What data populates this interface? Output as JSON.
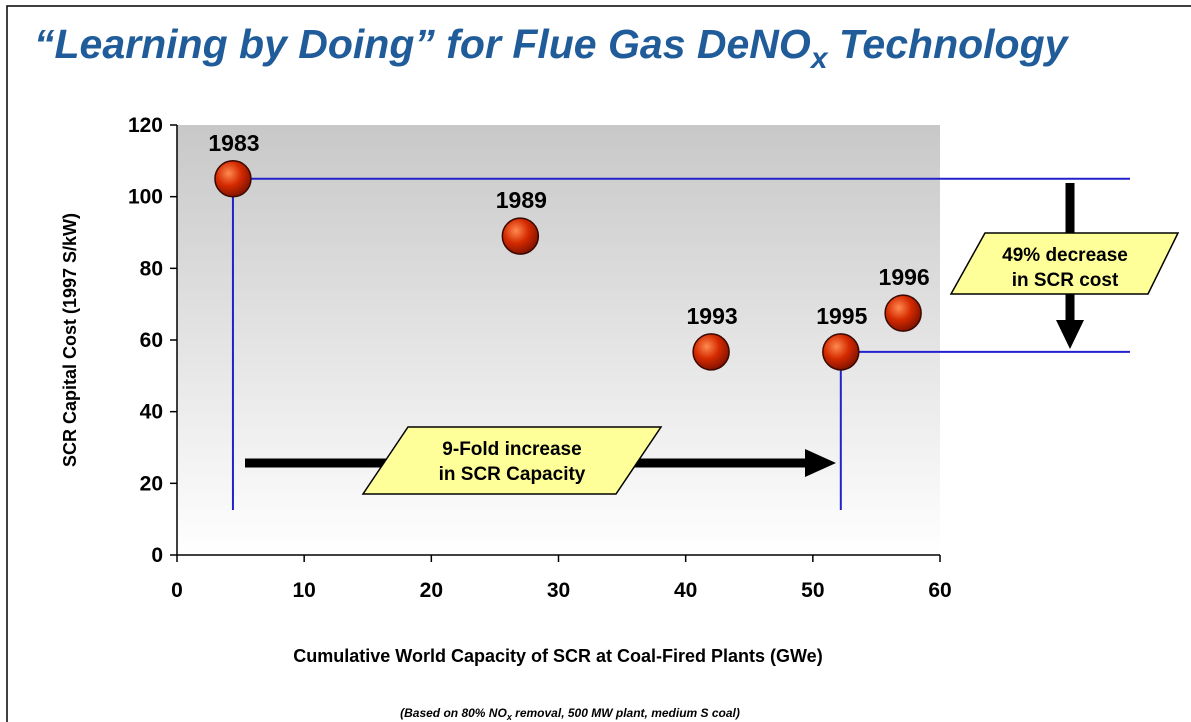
{
  "chart_data": {
    "type": "scatter",
    "title": [
      "“Learning by Doing” for Flue Gas DeNO",
      "x",
      " Technology"
    ],
    "xlabel": "Cumulative World Capacity of SCR at Coal-Fired Plants (GWe)",
    "ylabel": "SCR Capital Cost (1997 S/kW)",
    "footnote": [
      "(Based on 80% NO",
      "x",
      " removal, 500 MW plant, medium S coal)"
    ],
    "x": [
      4.4,
      27.0,
      42.0,
      52.2,
      57.1
    ],
    "values": [
      105,
      89,
      56.7,
      56.7,
      67.5
    ],
    "labels": [
      "1983",
      "1989",
      "1993",
      "1995",
      "1996"
    ],
    "color": "#d42a00",
    "xlim": [
      0,
      60
    ],
    "xticks": [
      0,
      10,
      20,
      30,
      40,
      50,
      60
    ],
    "ylim": [
      0,
      120
    ],
    "yticks": [
      0,
      20,
      40,
      60,
      80,
      100,
      120
    ],
    "annotations": [
      [
        "9-Fold increase",
        "in SCR Capacity"
      ],
      [
        "49% decrease",
        "in SCR cost"
      ]
    ]
  }
}
